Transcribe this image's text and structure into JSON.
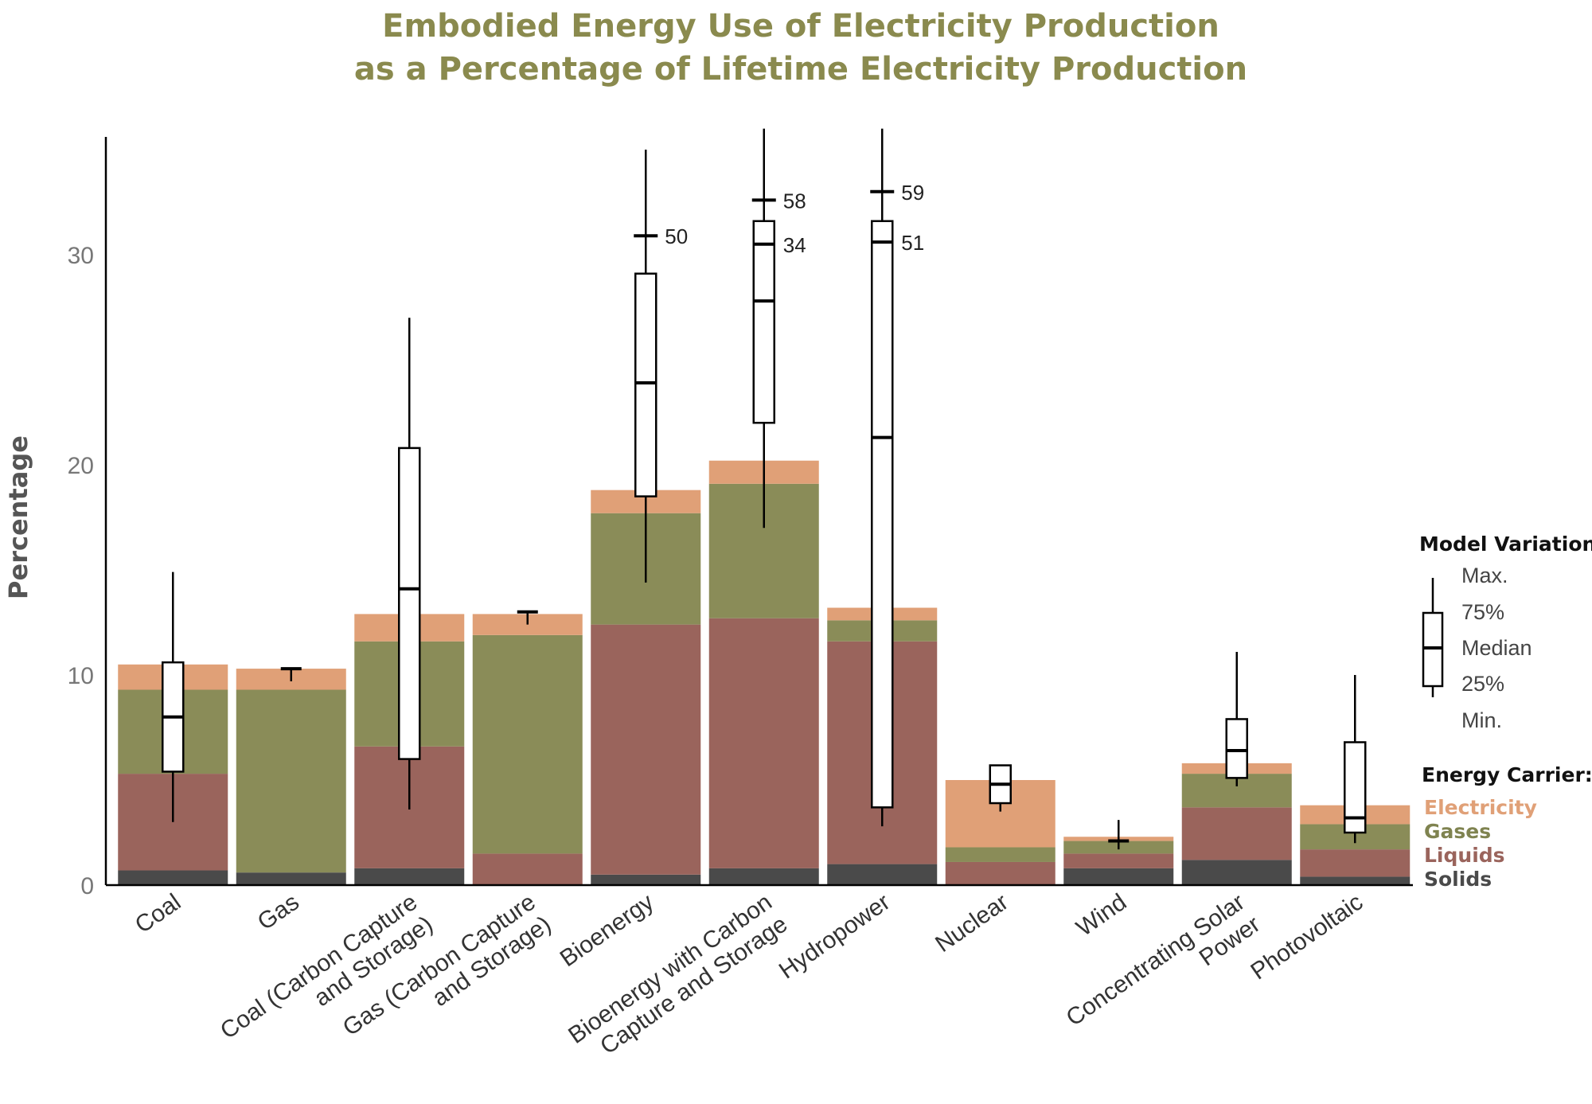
{
  "chart_data": {
    "type": "bar",
    "subtype": "stacked-bar-with-boxplots",
    "title_lines": [
      "Embodied Energy Use of Electricity Production",
      "as a Percentage of Lifetime Electricity Production"
    ],
    "ylabel": "Percentage",
    "ylim": [
      0,
      36
    ],
    "yticks": [
      0,
      10,
      20,
      30
    ],
    "categories": [
      [
        "Coal"
      ],
      [
        "Gas"
      ],
      [
        "Coal (Carbon Capture",
        "and Storage)"
      ],
      [
        "Gas (Carbon Capture",
        "and Storage)"
      ],
      [
        "Bioenergy"
      ],
      [
        "Bioenergy with Carbon",
        "Capture and Storage"
      ],
      [
        "Hydropower"
      ],
      [
        "Nuclear"
      ],
      [
        "Wind"
      ],
      [
        "Concentrating Solar",
        "Power"
      ],
      [
        "Photovoltaic"
      ]
    ],
    "series": [
      {
        "name": "Solids",
        "color": "#4a4a4a",
        "values": [
          0.7,
          0.6,
          0.8,
          0.0,
          0.5,
          0.8,
          1.0,
          0.0,
          0.8,
          1.2,
          0.4
        ]
      },
      {
        "name": "Liquids",
        "color": "#9a645c",
        "values": [
          4.6,
          0.0,
          5.8,
          1.5,
          11.9,
          11.9,
          10.6,
          1.1,
          0.7,
          2.5,
          1.3
        ]
      },
      {
        "name": "Gases",
        "color": "#8a8c58",
        "values": [
          4.0,
          8.7,
          5.0,
          10.4,
          5.3,
          6.4,
          1.0,
          0.7,
          0.6,
          1.6,
          1.2
        ]
      },
      {
        "name": "Electricity",
        "color": "#e0a077",
        "values": [
          1.2,
          1.0,
          1.3,
          1.0,
          1.1,
          1.1,
          0.6,
          3.2,
          0.2,
          0.5,
          0.9
        ]
      }
    ],
    "boxplots": [
      {
        "min": 3.0,
        "q1": 5.4,
        "median": 8.0,
        "q3": 10.6,
        "max": 14.9
      },
      {
        "min": 9.7,
        "q1": 10.3,
        "median": 10.3,
        "q3": 10.3,
        "max": 10.3
      },
      {
        "min": 3.6,
        "q1": 6.0,
        "median": 14.1,
        "q3": 20.8,
        "max": 27.0
      },
      {
        "min": 12.4,
        "q1": 13.0,
        "median": 13.0,
        "q3": 13.0,
        "max": 13.0
      },
      {
        "min": 14.4,
        "q1": 18.5,
        "median": 23.9,
        "q3": 29.1,
        "max": 35.0,
        "max_marker": 30.9,
        "max_label": "50"
      },
      {
        "min": 17.0,
        "q1": 22.0,
        "median": 27.8,
        "q3": 31.6,
        "max": 36.0,
        "max_marker": 32.6,
        "max_label": "58",
        "q3_marker": 30.5,
        "q3_label": "34"
      },
      {
        "min": 2.8,
        "q1": 3.7,
        "median": 21.3,
        "q3": 31.6,
        "max": 36.0,
        "max_marker": 33.0,
        "max_label": "59",
        "q3_marker": 30.6,
        "q3_label": "51"
      },
      {
        "min": 3.5,
        "q1": 3.9,
        "median": 4.8,
        "q3": 5.7,
        "max": 5.7
      },
      {
        "min": 1.7,
        "q1": 2.1,
        "median": 2.1,
        "q3": 2.1,
        "max": 3.1
      },
      {
        "min": 4.7,
        "q1": 5.1,
        "median": 6.4,
        "q3": 7.9,
        "max": 11.1
      },
      {
        "min": 2.0,
        "q1": 2.5,
        "median": 3.2,
        "q3": 6.8,
        "max": 10.0
      }
    ],
    "legend": {
      "position": "right",
      "model_title": "Model Variation:",
      "model_items": [
        "Max.",
        "75%",
        "Median",
        "25%",
        "Min."
      ],
      "carrier_title": "Energy Carrier:",
      "carrier_items": [
        {
          "name": "Electricity",
          "color": "#e0a077"
        },
        {
          "name": "Gases",
          "color": "#7f8350"
        },
        {
          "name": "Liquids",
          "color": "#9a645c"
        },
        {
          "name": "Solids",
          "color": "#4a4a4a"
        }
      ]
    }
  }
}
